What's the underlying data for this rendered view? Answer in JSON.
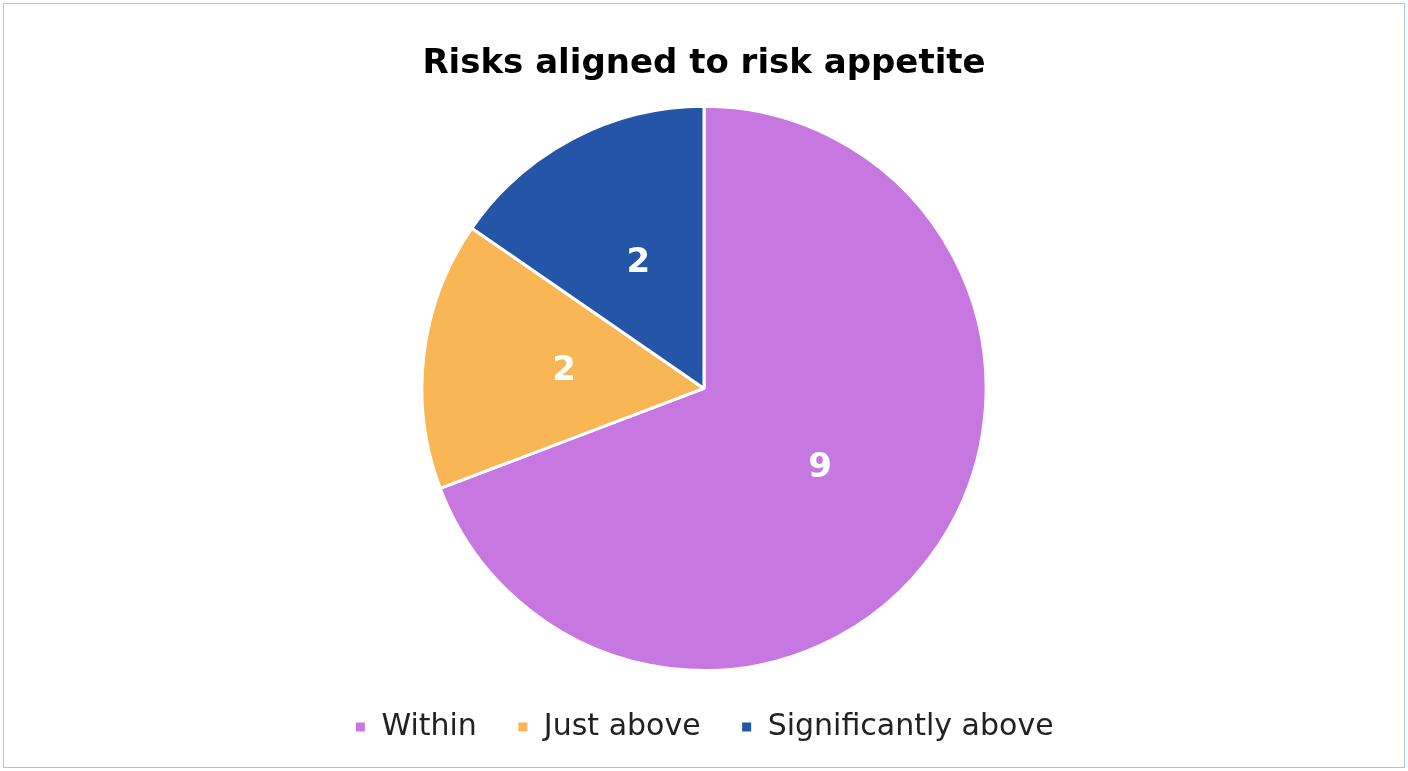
{
  "chart_data": {
    "type": "pie",
    "title": "Risks aligned to risk appetite",
    "categories": [
      "Within",
      "Just above",
      "Significantly above"
    ],
    "values": [
      9,
      2,
      2
    ],
    "colors": [
      "#c678e0",
      "#f9b654",
      "#2555a6"
    ],
    "data_labels": true,
    "legend": "bottom"
  }
}
